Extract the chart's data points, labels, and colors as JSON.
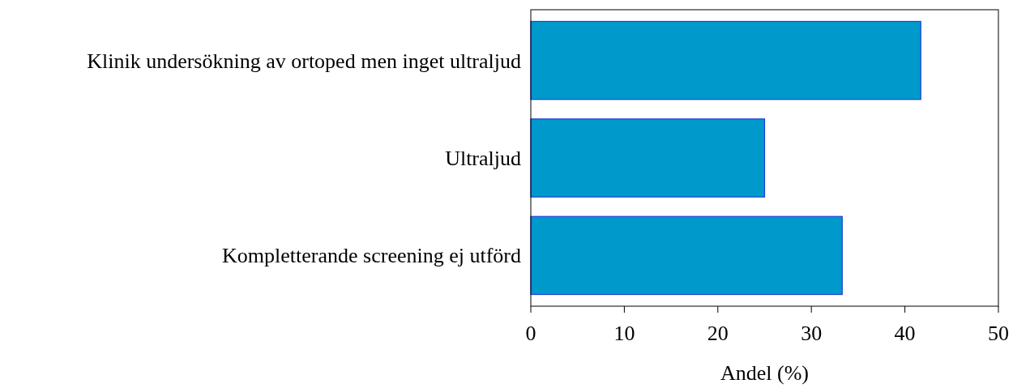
{
  "chart_data": {
    "type": "bar",
    "orientation": "horizontal",
    "xlabel": "Andel (%)",
    "categories": [
      "Klinik undersökning av ortoped men inget ultraljud",
      "Ultraljud",
      "Kompletterande screening ej utförd"
    ],
    "values": [
      41.7,
      25,
      33.3
    ],
    "color": "#0099cc",
    "xlim": [
      0,
      50
    ],
    "xticks": [
      0,
      10,
      20,
      30,
      40,
      50
    ],
    "grid": false
  }
}
